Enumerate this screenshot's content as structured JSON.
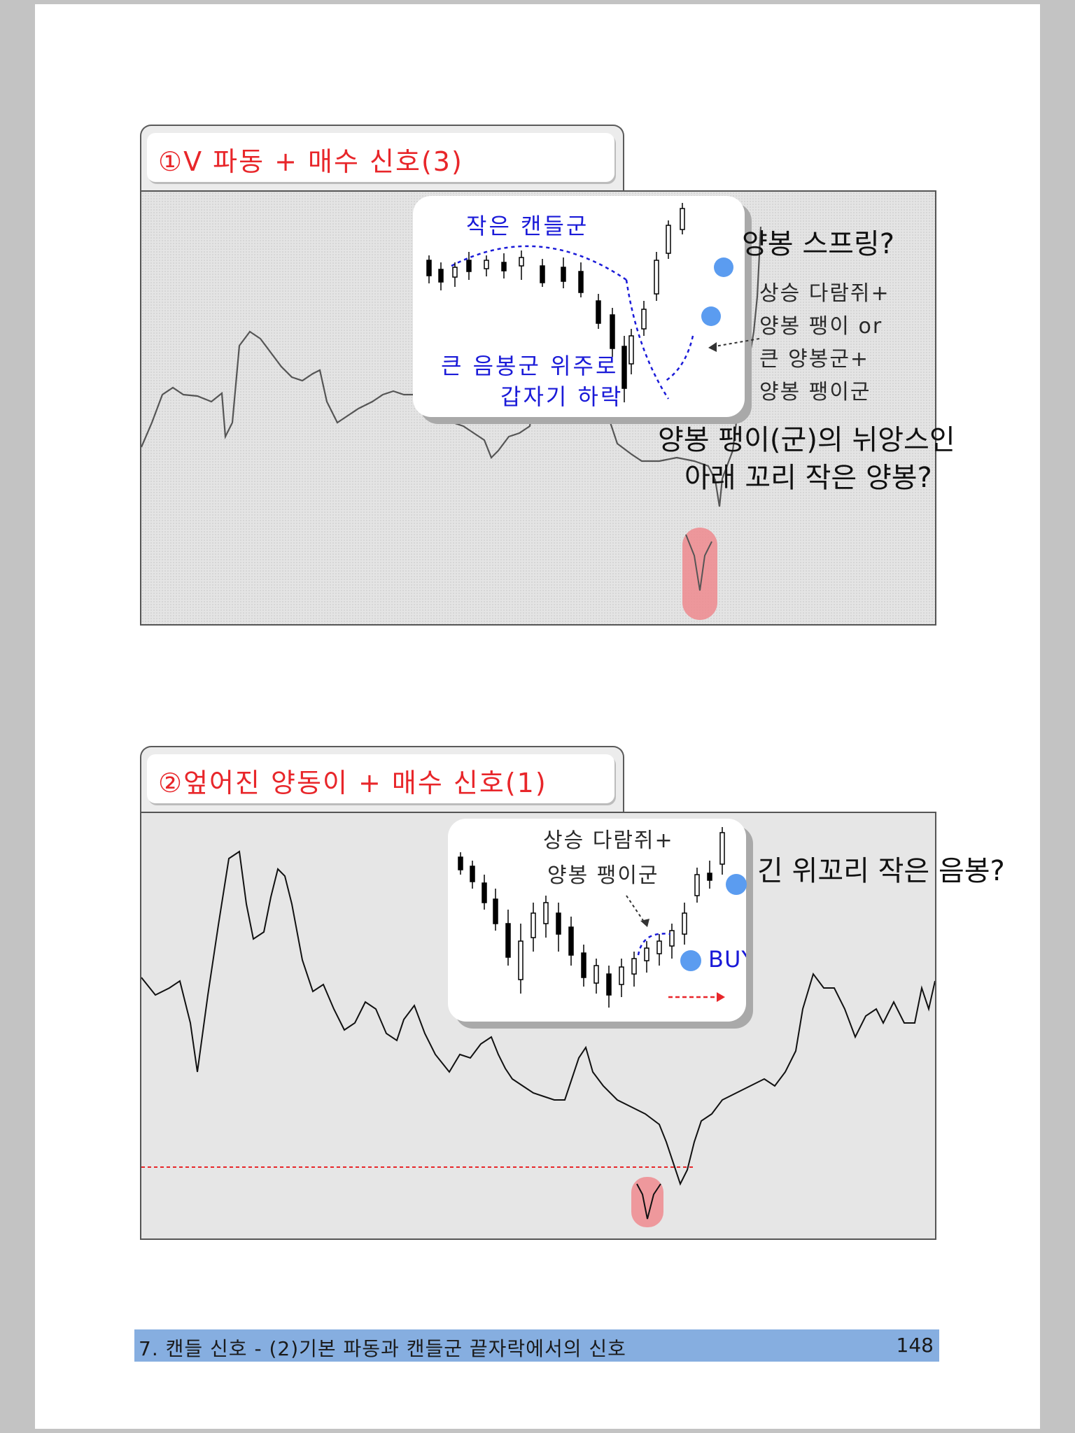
{
  "panel1": {
    "title": "①V 파동 + 매수 신호(3)",
    "inset_heading": "작은 캔들군",
    "inset_label_line1": "큰 음봉군 위주로",
    "inset_label_line2": "갑자기 하락",
    "note_lines": [
      "상승 다람쥐+",
      "양봉 팽이 or",
      "큰 양봉군+",
      "양봉 팽이군"
    ],
    "question_top": "양봉 스프링?",
    "question_mid_line1": "양봉 팽이(군)의 뉘앙스인",
    "question_mid_line2": "아래 꼬리 작은 양봉?"
  },
  "panel2": {
    "title": "②엎어진 양동이 + 매수 신호(1)",
    "note_line1": "상승 다람쥐+",
    "note_line2": "양봉 팽이군",
    "buy_label": "BUY",
    "question": "긴 위꼬리 작은 음봉?"
  },
  "colors": {
    "accent_red": "#e8262a",
    "label_blue": "#1a1ad8",
    "marker_blue": "#5b9cf0",
    "highlight_pink": "#ee8a8e",
    "footer_bar": "#86aee0"
  },
  "footer": {
    "text": "7. 캔들 신호 - (2)기본 파동과 캔들군 끝자락에서의 신호",
    "page": "148"
  }
}
